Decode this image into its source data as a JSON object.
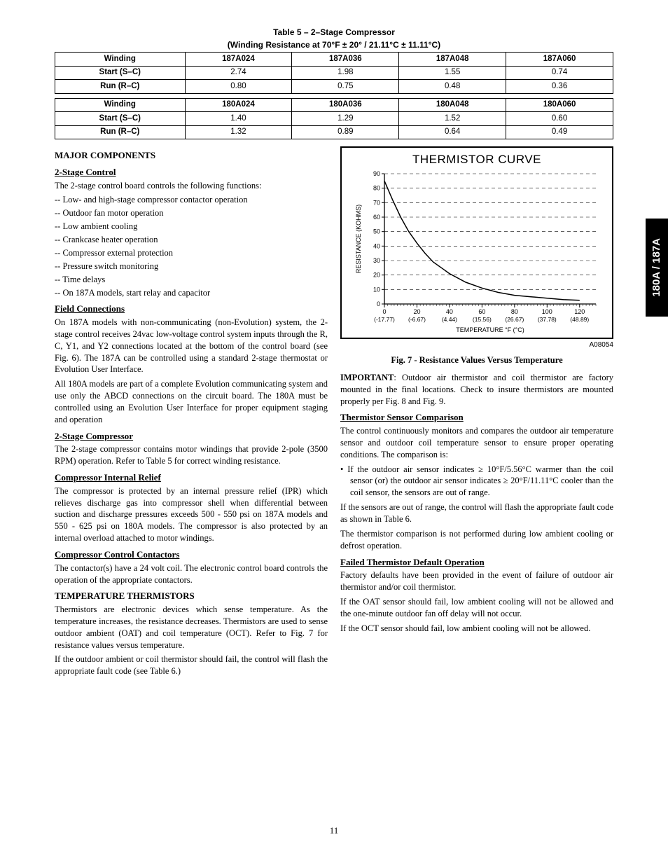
{
  "page_number": "11",
  "side_tab": "180A / 187A",
  "table5": {
    "title_line1": "Table 5 – 2–Stage Compressor",
    "title_line2": "(Winding Resistance at 70°F ± 20° / 21.11°C ± 11.11°C)",
    "blocks": [
      {
        "header": [
          "Winding",
          "187A024",
          "187A036",
          "187A048",
          "187A060"
        ],
        "rows": [
          [
            "Start (S–C)",
            "2.74",
            "1.98",
            "1.55",
            "0.74"
          ],
          [
            "Run (R–C)",
            "0.80",
            "0.75",
            "0.48",
            "0.36"
          ]
        ]
      },
      {
        "header": [
          "Winding",
          "180A024",
          "180A036",
          "180A048",
          "180A060"
        ],
        "rows": [
          [
            "Start (S–C)",
            "1.40",
            "1.29",
            "1.52",
            "0.60"
          ],
          [
            "Run (R–C)",
            "1.32",
            "0.89",
            "0.64",
            "0.49"
          ]
        ]
      }
    ]
  },
  "left": {
    "major_title": "MAJOR COMPONENTS",
    "s1_title": "2-Stage Control",
    "s1_p1": "The 2-stage control board controls the following functions:",
    "s1_list": [
      "Low- and high-stage compressor contactor operation",
      "Outdoor fan motor operation",
      "Low ambient cooling",
      "Crankcase heater operation",
      "Compressor external protection",
      "Pressure switch monitoring",
      "Time delays",
      "On 187A models, start relay and capacitor"
    ],
    "s2_title": "Field Connections",
    "s2_p1": "On 187A models with non-communicating (non-Evolution) system, the 2-stage control receives 24vac low-voltage control system inputs through the R, C, Y1, and Y2 connections located at the bottom of the control board (see Fig. 6). The 187A can be controlled using a standard 2-stage thermostat or Evolution User Interface.",
    "s2_p2": "All 180A models are part of a complete Evolution communicating system and use only the ABCD connections on the circuit board. The 180A must be controlled using an Evolution User Interface for proper equipment staging and operation",
    "s3_title": "2-Stage Compressor",
    "s3_p1": "The 2-stage compressor contains motor windings that provide 2-pole (3500 RPM) operation. Refer to Table 5 for correct winding resistance.",
    "s4_title": "Compressor Internal Relief",
    "s4_p1": "The compressor is protected by an internal pressure relief (IPR) which relieves discharge gas into compressor shell when differential between suction and discharge pressures exceeds 500 - 550 psi on 187A models and 550 - 625 psi on 180A models. The compressor is also protected by an internal overload attached to motor windings.",
    "s5_title": "Compressor Control Contactors",
    "s5_p1": "The contactor(s) have a 24 volt coil. The electronic control board controls the operation of the appropriate contactors.",
    "s6_title": "TEMPERATURE THERMISTORS",
    "s6_p1": "Thermistors are electronic devices which sense temperature. As the temperature increases, the resistance decreases. Thermistors are used to sense outdoor ambient (OAT) and coil temperature (OCT). Refer to Fig. 7 for resistance values versus temperature.",
    "s6_p2": "If the outdoor ambient or coil thermistor should fail,  the control will flash the appropriate fault code (see Table 6.)"
  },
  "right": {
    "important_p": "IMPORTANT: Outdoor air thermistor and coil thermistor are factory mounted in the final locations. Check to insure thermistors are mounted properly per Fig. 8 and Fig. 9.",
    "s1_title": "Thermistor Sensor Comparison",
    "s1_p1": "The control continuously monitors and compares the outdoor air temperature sensor and outdoor coil temperature sensor to ensure proper operating conditions. The comparison is:",
    "s1_bullet": "If the outdoor air sensor indicates ≥ 10°F/5.56°C warmer than the coil sensor (or) the outdoor air sensor indicates ≥ 20°F/11.11°C cooler than the coil sensor, the sensors are out of range.",
    "s1_p2": "If the sensors are out of range, the control will flash the appropriate fault code as shown in Table 6.",
    "s1_p3": "The thermistor comparison is not performed during low ambient cooling or defrost operation.",
    "s2_title": "Failed Thermistor Default Operation",
    "s2_p1": "Factory defaults have been provided in the event of failure of outdoor air thermistor and/or coil thermistor.",
    "s2_p2": "If the OAT sensor should fail, low ambient cooling will not be allowed and the one-minute outdoor fan off delay will not occur.",
    "s2_p3": "If the OCT sensor should fail, low ambient cooling will not be allowed."
  },
  "fig7": {
    "box_title": "THERMISTOR CURVE",
    "caption": "Fig. 7 - Resistance Values Versus Temperature",
    "id": "A08054",
    "type": "line",
    "x_ticks_f": [
      0,
      20,
      40,
      60,
      80,
      100,
      120
    ],
    "x_ticks_c": [
      "(-17.77)",
      "(-6.67)",
      "(4.44)",
      "(15.56)",
      "(26.67)",
      "(37.78)",
      "(48.89)"
    ],
    "y_ticks": [
      0,
      10,
      20,
      30,
      40,
      50,
      60,
      70,
      80,
      90
    ],
    "data_xy": [
      [
        0,
        85
      ],
      [
        5,
        72
      ],
      [
        10,
        60
      ],
      [
        15,
        50
      ],
      [
        20,
        42
      ],
      [
        25,
        35
      ],
      [
        30,
        29
      ],
      [
        35,
        25
      ],
      [
        40,
        21
      ],
      [
        50,
        15
      ],
      [
        60,
        11
      ],
      [
        70,
        8
      ],
      [
        80,
        6
      ],
      [
        90,
        5
      ],
      [
        100,
        4
      ],
      [
        110,
        3
      ],
      [
        120,
        2.5
      ]
    ],
    "xlabel": "TEMPERATURE °F (°C)",
    "ylabel": "RESISTANCE (KOHMS)",
    "colors": {
      "line": "#000000",
      "grid": "#000000",
      "background": "#ffffff"
    },
    "line_width": 1.5,
    "xlim": [
      0,
      130
    ],
    "ylim": [
      0,
      90
    ]
  }
}
